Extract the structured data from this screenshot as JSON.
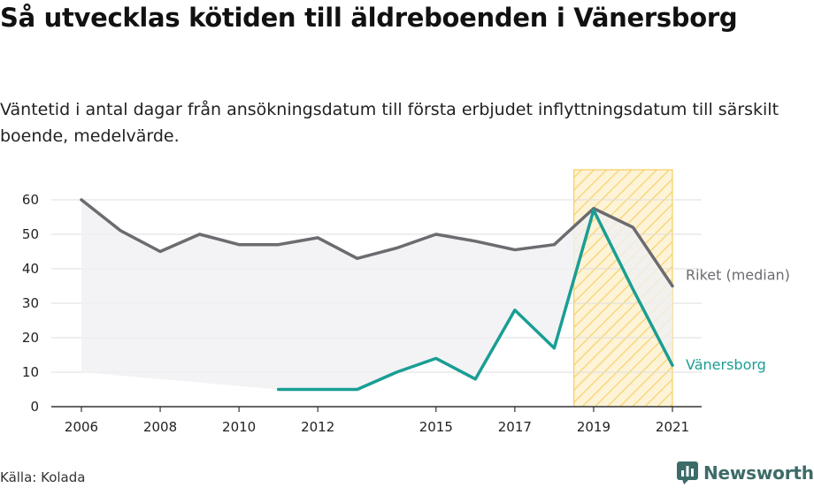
{
  "header": {
    "title": "Så utvecklas kötiden till äldreboenden i Vänersborg",
    "subtitle": "Väntetid i antal dagar från ansökningsdatum till första erbjudet inflyttningsdatum till särskilt boende, medelvärde."
  },
  "footer": {
    "source": "Källa: Kolada",
    "brand": "Newsworthy"
  },
  "colors": {
    "riket": "#6b6b70",
    "vanersborg": "#1a9e94",
    "highlight": "#f5c542",
    "brand": "#3d6b68"
  },
  "chart_data": {
    "type": "line",
    "x_ticks": [
      2006,
      2008,
      2010,
      2012,
      2015,
      2017,
      2019,
      2021
    ],
    "y_ticks": [
      0,
      10,
      20,
      30,
      40,
      50,
      60
    ],
    "xlim": [
      2006,
      2021
    ],
    "ylim": [
      0,
      60
    ],
    "highlight_range": [
      2018.5,
      2021
    ],
    "series": [
      {
        "name": "Riket (median)",
        "color": "#6b6b70",
        "points": [
          [
            2006,
            60
          ],
          [
            2007,
            51
          ],
          [
            2008,
            45
          ],
          [
            2009,
            50
          ],
          [
            2010,
            47
          ],
          [
            2011,
            47
          ],
          [
            2012,
            49
          ],
          [
            2013,
            43
          ],
          [
            2014,
            46
          ],
          [
            2015,
            50
          ],
          [
            2016,
            48
          ],
          [
            2017,
            45.5
          ],
          [
            2018,
            47
          ],
          [
            2019,
            57.5
          ],
          [
            2020,
            52
          ],
          [
            2021,
            35
          ]
        ]
      },
      {
        "name": "Vänersborg",
        "color": "#1a9e94",
        "points": [
          [
            2011,
            5
          ],
          [
            2012,
            5
          ],
          [
            2013,
            5
          ],
          [
            2014,
            10
          ],
          [
            2015,
            14
          ],
          [
            2016,
            8
          ],
          [
            2017,
            28
          ],
          [
            2018,
            17
          ],
          [
            2019,
            57
          ],
          [
            2020,
            34
          ],
          [
            2021,
            12
          ]
        ]
      }
    ]
  }
}
